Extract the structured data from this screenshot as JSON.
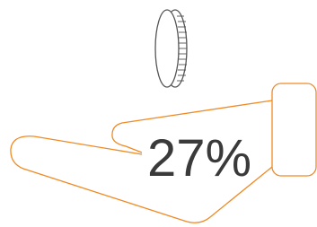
{
  "label": "27%"
}
